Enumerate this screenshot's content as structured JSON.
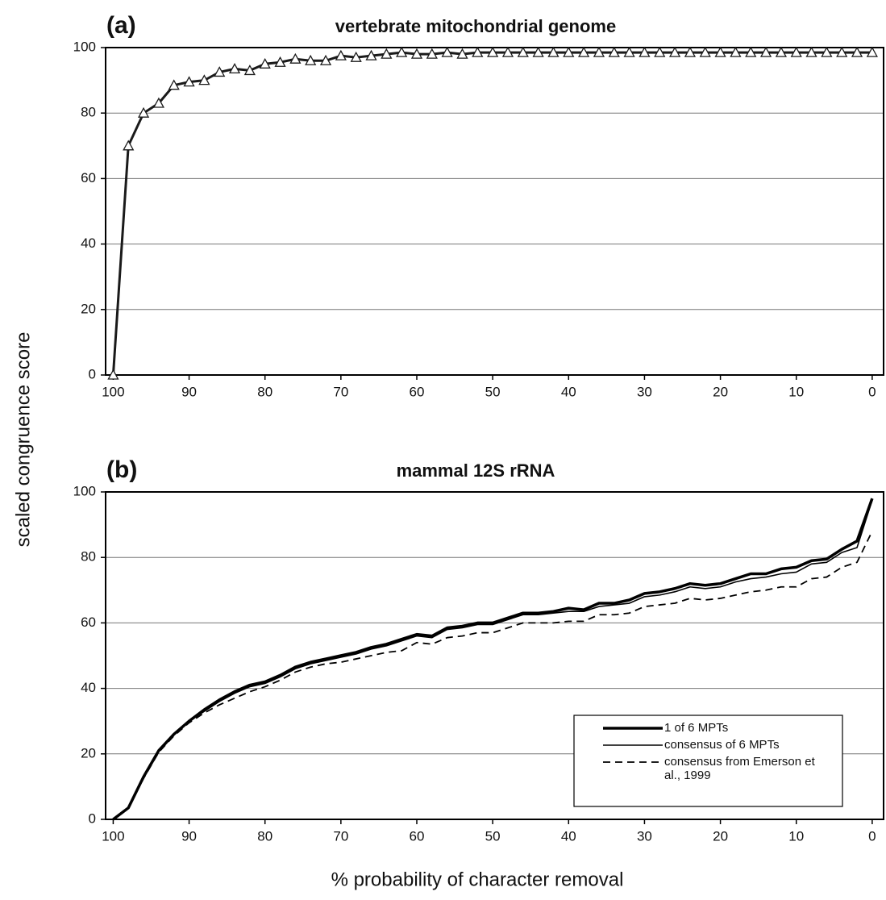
{
  "y_label": "scaled congruence score",
  "x_label": "% probability of character removal",
  "chart_data": [
    {
      "type": "line",
      "label": "(a)",
      "title": "vertebrate mitochondrial genome",
      "x": [
        100,
        98,
        96,
        94,
        92,
        90,
        88,
        86,
        84,
        82,
        80,
        78,
        76,
        74,
        72,
        70,
        68,
        66,
        64,
        62,
        60,
        58,
        56,
        54,
        52,
        50,
        48,
        46,
        44,
        42,
        40,
        38,
        36,
        34,
        32,
        30,
        28,
        26,
        24,
        22,
        20,
        18,
        16,
        14,
        12,
        10,
        8,
        6,
        4,
        2,
        0
      ],
      "values": [
        0,
        70,
        80,
        83,
        88.5,
        89.5,
        90,
        92.5,
        93.5,
        93,
        95,
        95.5,
        96.5,
        96,
        96,
        97.5,
        97,
        97.5,
        98,
        98.5,
        98,
        98,
        98.5,
        98,
        98.5,
        98.5,
        98.5,
        98.5,
        98.5,
        98.5,
        98.5,
        98.5,
        98.5,
        98.5,
        98.5,
        98.5,
        98.5,
        98.5,
        98.5,
        98.5,
        98.5,
        98.5,
        98.5,
        98.5,
        98.5,
        98.5,
        98.5,
        98.5,
        98.5,
        98.5,
        98.5
      ],
      "color": "#1a1a1a",
      "marker": "triangle",
      "xlim": [
        101,
        -1.5
      ],
      "ylim": [
        0,
        100
      ],
      "xticks": [
        100,
        90,
        80,
        70,
        60,
        50,
        40,
        30,
        20,
        10,
        0
      ],
      "yticks": [
        0,
        20,
        40,
        60,
        80,
        100
      ],
      "grid": true
    },
    {
      "type": "line",
      "label": "(b)",
      "title": "mammal 12S rRNA",
      "x": [
        100,
        98,
        96,
        94,
        92,
        90,
        88,
        86,
        84,
        82,
        80,
        78,
        76,
        74,
        72,
        70,
        68,
        66,
        64,
        62,
        60,
        58,
        56,
        54,
        52,
        50,
        48,
        46,
        44,
        42,
        40,
        38,
        36,
        34,
        32,
        30,
        28,
        26,
        24,
        22,
        20,
        18,
        16,
        14,
        12,
        10,
        8,
        6,
        4,
        2,
        0
      ],
      "series": [
        {
          "name": "1 of 6 MPTs",
          "color": "#000000",
          "style": "thick",
          "values": [
            0,
            3.5,
            13,
            21,
            26,
            30,
            33.5,
            36.5,
            39,
            41,
            42,
            44,
            46.5,
            48,
            49,
            50,
            51,
            52.5,
            53.5,
            55,
            56.5,
            56,
            58.5,
            59,
            60,
            60,
            61.5,
            63,
            63,
            63.5,
            64.5,
            64,
            66,
            66,
            67,
            69,
            69.5,
            70.5,
            72,
            71.5,
            72,
            73.5,
            75,
            75,
            76.5,
            77,
            79,
            79.5,
            82.5,
            85,
            98
          ]
        },
        {
          "name": "consensus of 6 MPTs",
          "color": "#000000",
          "style": "solid",
          "values": [
            0,
            3.5,
            13,
            21,
            26,
            30,
            33,
            36,
            38.5,
            40.5,
            41.5,
            43.5,
            46,
            47.5,
            48.5,
            49.5,
            50.5,
            52,
            53,
            54.5,
            56,
            55.5,
            58,
            58.5,
            59.5,
            59.5,
            61,
            62.5,
            62.5,
            63,
            63.5,
            63.5,
            65,
            65.5,
            66,
            68,
            68.5,
            69.5,
            71,
            70.5,
            71,
            72.5,
            73.5,
            74,
            75,
            75.5,
            78,
            78.5,
            81.5,
            83,
            97.5
          ]
        },
        {
          "name": "consensus from Emerson et al., 1999",
          "color": "#000000",
          "style": "dashed",
          "values": [
            0,
            3.5,
            12.5,
            20.5,
            25.5,
            29.5,
            32.5,
            35,
            37,
            39,
            40.5,
            42.5,
            45,
            46.5,
            47.5,
            48,
            49,
            50,
            51,
            51.5,
            54,
            53.5,
            55.5,
            56,
            57,
            57,
            58.5,
            60,
            60,
            60,
            60.5,
            60.5,
            62.5,
            62.5,
            63,
            65,
            65.5,
            66,
            67.5,
            67,
            67.5,
            68.5,
            69.5,
            70,
            71,
            71,
            73.5,
            74,
            77,
            78.5,
            88
          ]
        }
      ],
      "xlim": [
        101,
        -1.5
      ],
      "ylim": [
        0,
        100
      ],
      "xticks": [
        100,
        90,
        80,
        70,
        60,
        50,
        40,
        30,
        20,
        10,
        0
      ],
      "yticks": [
        0,
        20,
        40,
        60,
        80,
        100
      ],
      "grid": true,
      "legend": "lower right"
    }
  ]
}
